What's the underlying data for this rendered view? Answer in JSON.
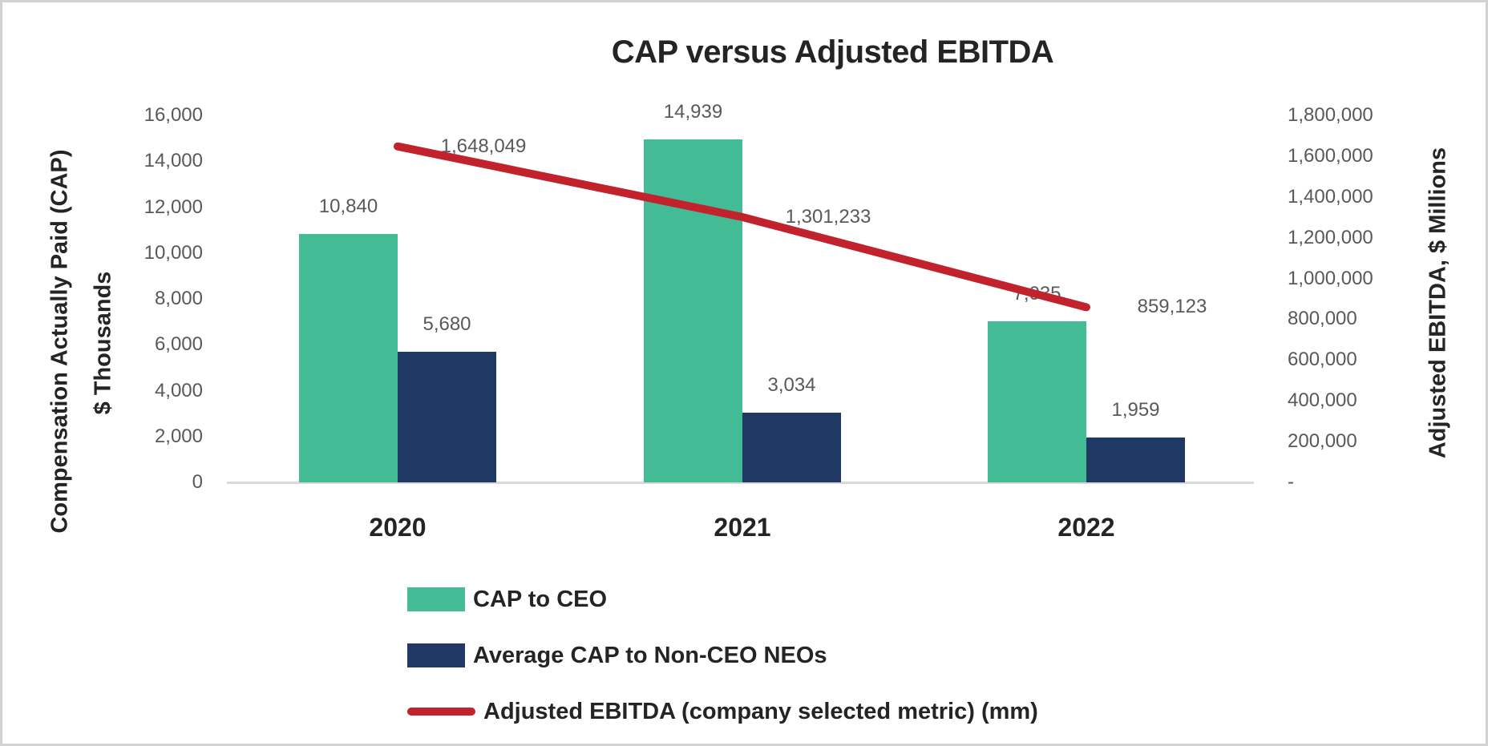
{
  "title": "CAP versus Adjusted EBITDA",
  "chart_data": {
    "type": "combo-bar-line",
    "categories": [
      "2020",
      "2021",
      "2022"
    ],
    "bar_series": [
      {
        "name": "CAP to CEO",
        "color": "#43BB94",
        "axis": "left",
        "values": [
          10840,
          14939,
          7035
        ],
        "labels": [
          "10,840",
          "14,939",
          "7,035"
        ]
      },
      {
        "name": "Average CAP to Non-CEO NEOs",
        "color": "#1F3864",
        "axis": "left",
        "values": [
          5680,
          3034,
          1959
        ],
        "labels": [
          "5,680",
          "3,034",
          "1,959"
        ]
      }
    ],
    "line_series": {
      "name": "Adjusted EBITDA (company selected metric) (mm)",
      "color": "#C2222C",
      "axis": "right",
      "values": [
        1648049,
        1301233,
        859123
      ],
      "labels": [
        "1,648,049",
        "1,301,233",
        "859,123"
      ]
    },
    "left_axis": {
      "title_line1": "Compensation Actually Paid (CAP)",
      "title_line2": "$ Thousands",
      "min": 0,
      "max": 16000,
      "tick_step": 2000,
      "ticks": [
        "0",
        "2,000",
        "4,000",
        "6,000",
        "8,000",
        "10,000",
        "12,000",
        "14,000",
        "16,000"
      ]
    },
    "right_axis": {
      "title": "Adjusted EBITDA, $ Millions",
      "min": 0,
      "max": 1800000,
      "tick_step": 200000,
      "ticks": [
        "-",
        "200,000",
        "400,000",
        "600,000",
        "800,000",
        "1,000,000",
        "1,200,000",
        "1,400,000",
        "1,600,000",
        "1,800,000"
      ]
    },
    "x_axis": {
      "labels": [
        "2020",
        "2021",
        "2022"
      ]
    },
    "legend": [
      {
        "label": "CAP to CEO",
        "swatch": "bar",
        "color": "#43BB94"
      },
      {
        "label": "Average CAP to Non-CEO NEOs",
        "swatch": "bar",
        "color": "#1F3864"
      },
      {
        "label": "Adjusted EBITDA (company selected metric) (mm)",
        "swatch": "line",
        "color": "#C2222C"
      }
    ],
    "gridlines": false,
    "legend_position": "bottom-left",
    "label_color": "#595959",
    "text_color": "#242424",
    "baseline_color": "#D9D9D9"
  }
}
